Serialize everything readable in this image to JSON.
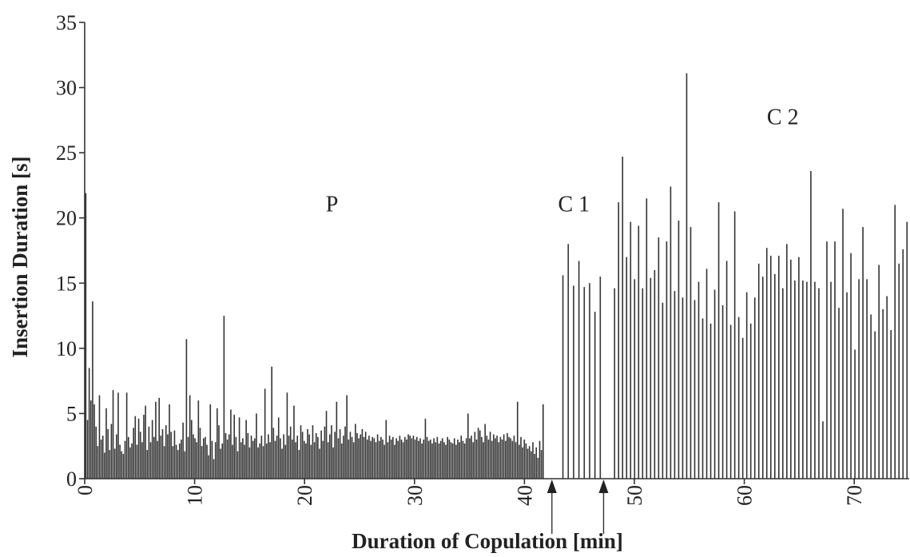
{
  "chart_data": {
    "type": "bar",
    "title": "",
    "xlabel": "Duration of Copulation [min]",
    "ylabel": "Insertion Duration [s]",
    "xlim": [
      0,
      75
    ],
    "ylim": [
      0,
      35
    ],
    "x_ticks": [
      0,
      10,
      20,
      30,
      40,
      50,
      60,
      70
    ],
    "y_ticks": [
      0,
      5,
      10,
      15,
      20,
      25,
      30,
      35
    ],
    "grid": false,
    "colors": {
      "bars": "#333333",
      "axis": "#333333"
    },
    "annotations": [
      {
        "label": "P",
        "x": 22.5,
        "y": 20.5
      },
      {
        "label": "C 1",
        "x": 44.5,
        "y": 20.5
      },
      {
        "label": "C 2",
        "x": 63.5,
        "y": 27.2
      }
    ],
    "markers": [
      {
        "type": "arrow-up-icon",
        "x": 42.5
      },
      {
        "type": "arrow-up-icon",
        "x": 47.2
      }
    ],
    "segments": [
      {
        "name": "P",
        "x_start": 0.1,
        "x_end": 41.7,
        "values": [
          21.9,
          4.5,
          8.5,
          6.0,
          13.6,
          5.7,
          4.0,
          2.5,
          6.4,
          3.0,
          3.3,
          2.0,
          5.4,
          3.8,
          2.2,
          4.2,
          6.8,
          2.3,
          3.4,
          6.6,
          2.6,
          2.1,
          1.9,
          2.9,
          6.6,
          3.2,
          2.4,
          2.7,
          3.9,
          4.8,
          2.6,
          4.6,
          3.6,
          2.8,
          4.9,
          5.6,
          2.2,
          4.0,
          2.8,
          4.5,
          3.2,
          5.9,
          2.9,
          6.2,
          3.3,
          3.8,
          2.5,
          4.1,
          3.4,
          5.7,
          3.6,
          2.5,
          3.7,
          2.6,
          2.2,
          2.7,
          3.0,
          4.3,
          2.1,
          10.7,
          3.2,
          6.4,
          4.5,
          3.4,
          3.1,
          2.8,
          6.0,
          3.9,
          2.5,
          3.1,
          3.2,
          2.6,
          1.8,
          5.7,
          2.9,
          1.5,
          2.8,
          5.4,
          4.1,
          2.3,
          2.7,
          12.5,
          3.5,
          3.0,
          3.4,
          5.3,
          2.6,
          4.9,
          3.2,
          2.1,
          4.7,
          2.8,
          3.1,
          2.6,
          4.5,
          3.5,
          2.4,
          3.3,
          2.9,
          3.1,
          5.0,
          2.4,
          2.7,
          3.3,
          2.5,
          6.9,
          2.7,
          3.4,
          2.8,
          8.6,
          3.9,
          2.9,
          3.3,
          4.7,
          3.1,
          2.3,
          3.4,
          2.6,
          6.6,
          3.3,
          4.0,
          3.0,
          5.6,
          2.8,
          3.3,
          2.2,
          4.1,
          3.6,
          2.9,
          2.7,
          3.8,
          3.4,
          2.6,
          4.1,
          2.8,
          3.5,
          3.2,
          2.3,
          3.7,
          2.9,
          4.0,
          5.2,
          2.8,
          3.4,
          4.1,
          2.4,
          3.6,
          5.9,
          3.1,
          3.8,
          2.7,
          3.3,
          4.0,
          6.4,
          3.0,
          3.6,
          3.2,
          2.8,
          4.2,
          3.5,
          3.1,
          3.4,
          3.8,
          3.2,
          3.6,
          3.0,
          3.3,
          2.9,
          3.2,
          3.1,
          2.8,
          3.4,
          2.9,
          3.2,
          3.0,
          2.6,
          4.5,
          2.8,
          3.3,
          3.0,
          3.2,
          2.6,
          3.1,
          2.9,
          3.3,
          3.0,
          2.8,
          3.2,
          3.0,
          3.4,
          3.3,
          3.1,
          3.3,
          3.0,
          3.2,
          2.9,
          3.1,
          2.7,
          3.0,
          4.6,
          3.2,
          2.9,
          3.0,
          2.7,
          3.1,
          2.8,
          3.2,
          2.7,
          2.9,
          3.1,
          2.8,
          2.6,
          3.2,
          3.0,
          2.8,
          2.7,
          3.1,
          2.6,
          3.0,
          2.8,
          3.3,
          2.9,
          2.7,
          3.1,
          5.0,
          3.1,
          3.3,
          2.8,
          3.6,
          3.0,
          3.9,
          3.7,
          3.2,
          2.8,
          4.2,
          3.3,
          3.0,
          3.6,
          2.9,
          3.4,
          3.1,
          3.3,
          2.8,
          3.2,
          3.0,
          3.4,
          2.9,
          3.5,
          3.2,
          3.1,
          2.9,
          3.3,
          2.8,
          5.9,
          2.6,
          3.2,
          2.4,
          3.0,
          2.7,
          2.3,
          2.5,
          2.1,
          2.8,
          1.9,
          2.4,
          1.6,
          2.9,
          2.2,
          5.7
        ]
      },
      {
        "name": "C 1",
        "x_start": 43.5,
        "x_end": 46.9,
        "values": [
          15.6,
          18.0,
          14.8,
          16.7,
          14.7,
          15.0,
          12.8,
          15.5
        ]
      },
      {
        "name": "C 2",
        "x_start": 48.2,
        "x_end": 74.8,
        "values": [
          14.6,
          21.2,
          24.7,
          17.0,
          19.7,
          15.3,
          19.4,
          14.6,
          21.5,
          15.4,
          16.0,
          18.5,
          13.5,
          18.2,
          22.4,
          14.4,
          19.8,
          13.9,
          31.1,
          19.3,
          13.7,
          15.1,
          12.3,
          16.1,
          11.9,
          14.5,
          21.2,
          13.3,
          16.7,
          11.8,
          20.5,
          12.4,
          10.8,
          14.3,
          11.9,
          13.9,
          16.5,
          15.5,
          17.7,
          17.1,
          15.7,
          17.1,
          14.6,
          18.0,
          16.8,
          15.2,
          17.0,
          15.2,
          15.1,
          23.6,
          15.1,
          14.6,
          4.4,
          18.2,
          15.1,
          18.2,
          13.1,
          20.7,
          14.3,
          17.3,
          9.9,
          15.3,
          19.3,
          15.3,
          12.6,
          11.3,
          16.4,
          13.0,
          14.0,
          11.4,
          21.0,
          16.5,
          17.6,
          19.7
        ]
      }
    ]
  }
}
